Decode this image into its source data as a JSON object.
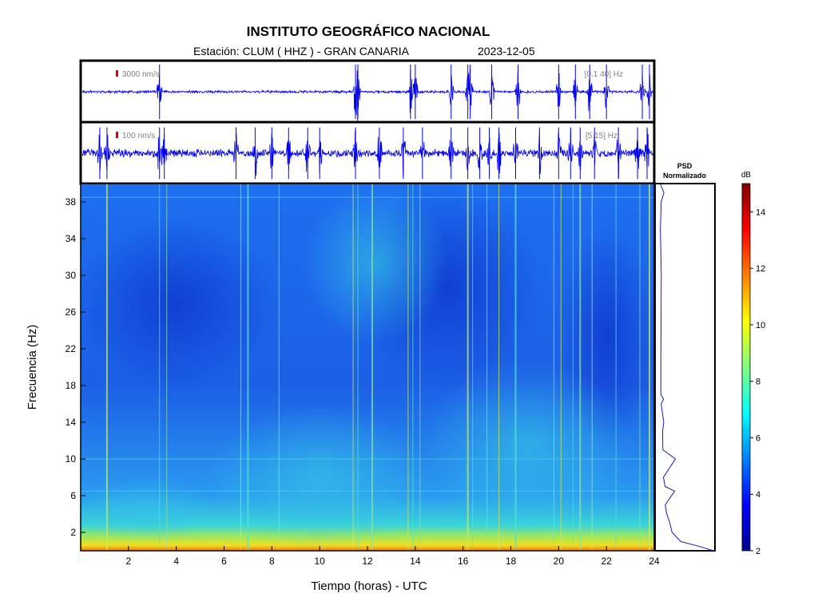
{
  "header": {
    "title": "INSTITUTO GEOGRÁFICO NACIONAL",
    "station": "Estación:  CLUM ( HHZ ) - GRAN CANARIA",
    "date": "2023-12-05"
  },
  "chart_data": [
    {
      "type": "line",
      "panel": "waveform-top",
      "amplitude_scale": "3000 nm/s",
      "band": "[0.1 40] Hz",
      "x_range_hours": [
        0,
        24
      ],
      "series_color": "#0000ee",
      "event_hours": [
        3.3,
        11.5,
        11.6,
        13.8,
        14.0,
        15.5,
        16.2,
        16.3,
        17.2,
        18.3,
        20.0,
        20.7,
        21.3,
        22.0,
        23.5,
        23.8
      ]
    },
    {
      "type": "line",
      "panel": "waveform-bottom",
      "amplitude_scale": "100 nm/s",
      "band": "[5 15] Hz",
      "x_range_hours": [
        0,
        24
      ],
      "series_color": "#0000ee",
      "event_hours": [
        0.8,
        1.1,
        3.3,
        3.5,
        6.5,
        7.3,
        8.0,
        8.7,
        9.5,
        10.0,
        11.5,
        12.5,
        13.5,
        14.3,
        15.5,
        16.2,
        16.7,
        17.1,
        17.5,
        18.2,
        19.2,
        20.0,
        20.5,
        20.9,
        21.5,
        22.5,
        23.3,
        23.7
      ]
    },
    {
      "type": "heatmap",
      "panel": "spectrogram",
      "title": "",
      "xlabel": "Tiempo (horas) - UTC",
      "ylabel": "Frecuencia  (Hz)",
      "xlim": [
        0,
        24
      ],
      "ylim": [
        0,
        40
      ],
      "x_ticks": [
        2,
        4,
        6,
        8,
        10,
        12,
        14,
        16,
        18,
        20,
        22,
        24
      ],
      "y_ticks": [
        2,
        6,
        10,
        14,
        18,
        22,
        26,
        30,
        34,
        38
      ],
      "vertical_line_hours": [
        1.1,
        3.3,
        3.6,
        6.7,
        7.0,
        8.3,
        11.4,
        11.6,
        12.2,
        13.7,
        13.9,
        14.2,
        16.2,
        16.4,
        17.0,
        17.5,
        18.2,
        19.8,
        20.1,
        20.6,
        20.9,
        21.4,
        22.4,
        23.4,
        23.8
      ],
      "horizontal_line_hz": [
        10,
        6.5,
        38.5
      ]
    },
    {
      "type": "line",
      "panel": "psd",
      "title": "PSD\nNormalizado",
      "title_lines": [
        "PSD",
        "Normalizado"
      ],
      "orientation": "vertical",
      "ylim": [
        0,
        40
      ],
      "profile": [
        {
          "hz": 0,
          "v": 1.0
        },
        {
          "hz": 0.5,
          "v": 0.72
        },
        {
          "hz": 1,
          "v": 0.38
        },
        {
          "hz": 2,
          "v": 0.22
        },
        {
          "hz": 3,
          "v": 0.17
        },
        {
          "hz": 4,
          "v": 0.12
        },
        {
          "hz": 5,
          "v": 0.09
        },
        {
          "hz": 6.5,
          "v": 0.27
        },
        {
          "hz": 7,
          "v": 0.08
        },
        {
          "hz": 8,
          "v": 0.06
        },
        {
          "hz": 10,
          "v": 0.28
        },
        {
          "hz": 11,
          "v": 0.05
        },
        {
          "hz": 13,
          "v": 0.04
        },
        {
          "hz": 14,
          "v": 0.06
        },
        {
          "hz": 16,
          "v": 0.02
        },
        {
          "hz": 16.5,
          "v": 0.05
        },
        {
          "hz": 17,
          "v": 0.01
        },
        {
          "hz": 20,
          "v": 0.01
        },
        {
          "hz": 25,
          "v": 0.0
        },
        {
          "hz": 30,
          "v": 0.01
        },
        {
          "hz": 35,
          "v": 0.0
        },
        {
          "hz": 38,
          "v": 0.01
        },
        {
          "hz": 39,
          "v": 0.06
        },
        {
          "hz": 40,
          "v": 0.0
        }
      ]
    },
    {
      "type": "colorbar",
      "panel": "colorbar",
      "title": "dB",
      "range": [
        2,
        15
      ],
      "ticks": [
        2,
        4,
        6,
        8,
        10,
        12,
        14
      ],
      "colors": [
        "#00008f",
        "#0000ff",
        "#0080ff",
        "#00ffff",
        "#80ff80",
        "#ffff00",
        "#ff8000",
        "#ff0000",
        "#800000"
      ]
    }
  ]
}
